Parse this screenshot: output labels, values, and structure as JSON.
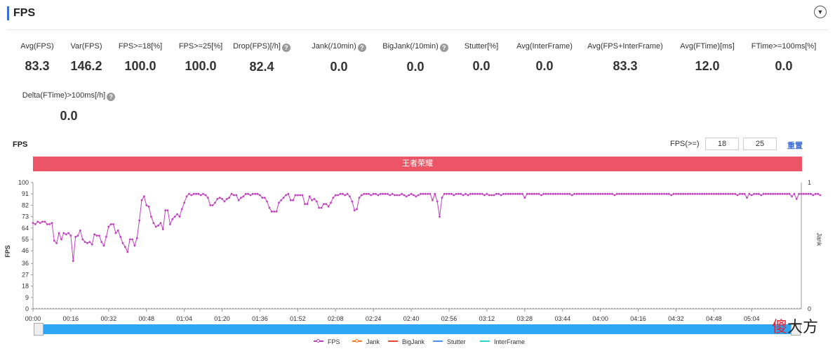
{
  "header": {
    "title": "FPS",
    "collapse_icon": "▼"
  },
  "metrics": [
    {
      "label": "Avg(FPS)",
      "value": "83.3",
      "help": false
    },
    {
      "label": "Var(FPS)",
      "value": "146.2",
      "help": false
    },
    {
      "label": "FPS>=18[%]",
      "value": "100.0",
      "help": false
    },
    {
      "label": "FPS>=25[%]",
      "value": "100.0",
      "help": false
    },
    {
      "label": "Drop(FPS)[/h]",
      "value": "82.4",
      "help": true
    },
    {
      "label": "Jank(/10min)",
      "value": "0.0",
      "help": true
    },
    {
      "label": "BigJank(/10min)",
      "value": "0.0",
      "help": true
    },
    {
      "label": "Stutter[%]",
      "value": "0.0",
      "help": false
    },
    {
      "label": "Avg(InterFrame)",
      "value": "0.0",
      "help": false
    },
    {
      "label": "Avg(FPS+InterFrame)",
      "value": "83.3",
      "help": false
    },
    {
      "label": "Avg(FTime)[ms]",
      "value": "12.0",
      "help": false
    },
    {
      "label": "FTime>=100ms[%]",
      "value": "0.0",
      "help": false
    },
    {
      "label": "Delta(FTime)>100ms[/h]",
      "value": "0.0",
      "help": true
    }
  ],
  "help_glyph": "?",
  "chart_header": {
    "title": "FPS",
    "threshold_label": "FPS(>=)",
    "threshold_1": "18",
    "threshold_2": "25",
    "reset_label": "重置"
  },
  "scene_label": "王者荣耀",
  "watermark": {
    "part1": "傻",
    "part2": "大方"
  },
  "chart_data": {
    "type": "line",
    "ylabel": "FPS",
    "ylabel_right": "Jank",
    "ylim": [
      0,
      100
    ],
    "y_ticks": [
      "0",
      "9",
      "18",
      "27",
      "36",
      "46",
      "55",
      "64",
      "73",
      "82",
      "91",
      "100"
    ],
    "y_right_ticks": [
      "0",
      "1"
    ],
    "xlim": [
      0,
      325
    ],
    "x_tick_seconds": [
      0,
      16,
      32,
      48,
      64,
      80,
      96,
      112,
      128,
      144,
      160,
      176,
      192,
      208,
      224,
      240,
      256,
      272,
      288,
      304
    ],
    "x_tick_labels": [
      "00:00",
      "00:16",
      "00:32",
      "00:48",
      "01:04",
      "01:20",
      "01:36",
      "01:52",
      "02:08",
      "02:24",
      "02:40",
      "02:56",
      "03:12",
      "03:28",
      "03:44",
      "04:00",
      "04:16",
      "04:32",
      "04:48",
      "05:04"
    ],
    "legend": [
      {
        "name": "FPS",
        "color": "#c040c0"
      },
      {
        "name": "Jank",
        "color": "#f07b2a"
      },
      {
        "name": "BigJank",
        "color": "#e8443a"
      },
      {
        "name": "Stutter",
        "color": "#4b8ff0"
      },
      {
        "name": "InterFrame",
        "color": "#2ed4d4"
      }
    ],
    "series": [
      {
        "name": "FPS",
        "color": "#c040c0",
        "values": [
          68,
          67,
          69,
          68,
          69,
          69,
          67,
          67,
          68,
          54,
          52,
          60,
          55,
          60,
          59,
          60,
          58,
          38,
          57,
          58,
          62,
          55,
          53,
          52,
          53,
          51,
          59,
          58,
          58,
          53,
          50,
          57,
          65,
          67,
          67,
          60,
          62,
          57,
          52,
          49,
          45,
          55,
          55,
          50,
          56,
          70,
          86,
          89,
          82,
          81,
          73,
          68,
          65,
          66,
          68,
          63,
          78,
          78,
          67,
          71,
          73,
          75,
          73,
          79,
          84,
          89,
          91,
          90,
          91,
          91,
          91,
          90,
          91,
          90,
          88,
          82,
          82,
          84,
          87,
          88,
          87,
          85,
          87,
          88,
          91,
          90,
          90,
          86,
          88,
          89,
          91,
          91,
          90,
          91,
          91,
          91,
          90,
          88,
          88,
          85,
          80,
          77,
          77,
          77,
          84,
          86,
          88,
          90,
          91,
          86,
          86,
          90,
          90,
          90,
          90,
          83,
          83,
          89,
          86,
          87,
          85,
          80,
          80,
          83,
          83,
          81,
          84,
          88,
          90,
          90,
          91,
          91,
          90,
          91,
          89,
          85,
          78,
          79,
          88,
          90,
          91,
          91,
          91,
          90,
          91,
          91,
          90,
          91,
          91,
          91,
          91,
          90,
          91,
          90,
          90,
          90,
          91,
          90,
          89,
          90,
          91,
          90,
          89,
          90,
          91,
          91,
          91,
          91,
          91,
          86,
          91,
          85,
          73,
          88,
          91,
          91,
          91,
          91,
          90,
          91,
          91,
          91,
          90,
          91,
          90,
          91,
          91,
          91,
          91,
          91,
          91,
          90,
          91,
          90,
          90,
          90,
          91,
          91,
          90,
          91,
          91,
          91,
          91,
          91,
          91,
          91,
          91,
          91,
          88,
          91,
          91,
          91,
          91,
          91,
          91,
          90,
          91,
          91,
          91,
          91,
          91,
          91,
          91,
          91,
          91,
          91,
          91,
          91,
          90,
          91,
          91,
          91,
          91,
          91,
          91,
          91,
          91,
          91,
          91,
          91,
          91,
          91,
          91,
          91,
          91,
          91,
          90,
          91,
          91,
          91,
          91,
          91,
          91,
          91,
          91,
          91,
          91,
          91,
          91,
          91,
          91,
          91,
          91,
          91,
          91,
          91,
          91,
          91,
          91,
          91,
          90,
          91,
          91,
          91,
          91,
          91,
          91,
          91,
          91,
          91,
          91,
          91,
          91,
          91,
          91,
          91,
          91,
          91,
          91,
          91,
          91,
          91,
          91,
          91,
          91,
          91,
          91,
          91,
          90,
          91,
          91,
          91,
          88,
          91,
          90,
          91,
          91,
          91,
          90,
          91,
          91,
          91,
          91,
          91,
          91,
          91,
          91,
          91,
          91,
          91,
          91,
          89,
          91,
          87,
          91,
          91,
          91,
          91,
          91,
          91,
          90,
          91,
          91,
          90
        ]
      }
    ],
    "grid": false
  }
}
